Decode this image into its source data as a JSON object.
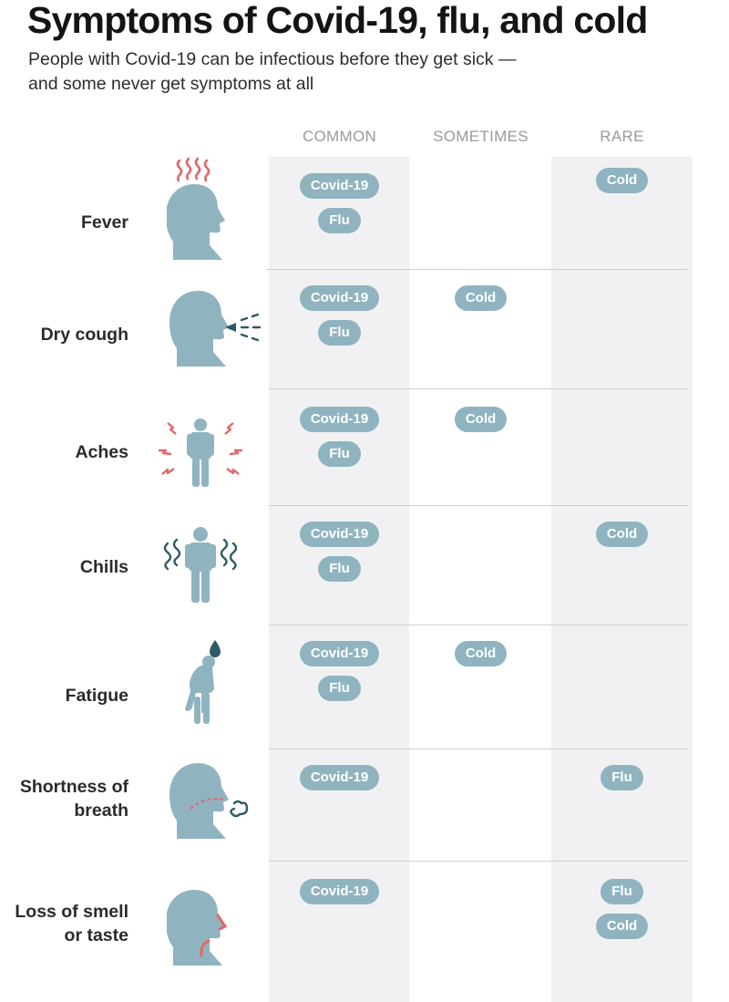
{
  "title": "Symptoms of Covid-19, flu, and cold",
  "subtitle": [
    "People with Covid-19 can be infectious before they get sick —",
    "and some never get symptoms at all"
  ],
  "columns": [
    "COMMON",
    "SOMETIMES",
    "RARE"
  ],
  "colors": {
    "pill": "#8fb4c0",
    "figure": "#8fb4c0",
    "accent": "#e1686b",
    "dark_accent": "#2e5967",
    "column_shade": "#f1f1f3"
  },
  "rows": [
    {
      "symptom": "Fever",
      "icon": "fever-icon",
      "common": [
        "Covid-19",
        "Flu"
      ],
      "sometimes": [],
      "rare": [
        "Cold"
      ]
    },
    {
      "symptom": "Dry cough",
      "icon": "cough-icon",
      "common": [
        "Covid-19",
        "Flu"
      ],
      "sometimes": [
        "Cold"
      ],
      "rare": []
    },
    {
      "symptom": "Aches",
      "icon": "aches-icon",
      "common": [
        "Covid-19",
        "Flu"
      ],
      "sometimes": [
        "Cold"
      ],
      "rare": []
    },
    {
      "symptom": "Chills",
      "icon": "chills-icon",
      "common": [
        "Covid-19",
        "Flu"
      ],
      "sometimes": [],
      "rare": [
        "Cold"
      ]
    },
    {
      "symptom": "Fatigue",
      "icon": "fatigue-icon",
      "common": [
        "Covid-19",
        "Flu"
      ],
      "sometimes": [
        "Cold"
      ],
      "rare": []
    },
    {
      "symptom": "Shortness of\nbreath",
      "icon": "breath-icon",
      "common": [
        "Covid-19"
      ],
      "sometimes": [],
      "rare": [
        "Flu"
      ]
    },
    {
      "symptom": "Loss of smell\nor taste",
      "icon": "smell-icon",
      "common": [
        "Covid-19"
      ],
      "sometimes": [],
      "rare": [
        "Flu",
        "Cold"
      ]
    }
  ]
}
